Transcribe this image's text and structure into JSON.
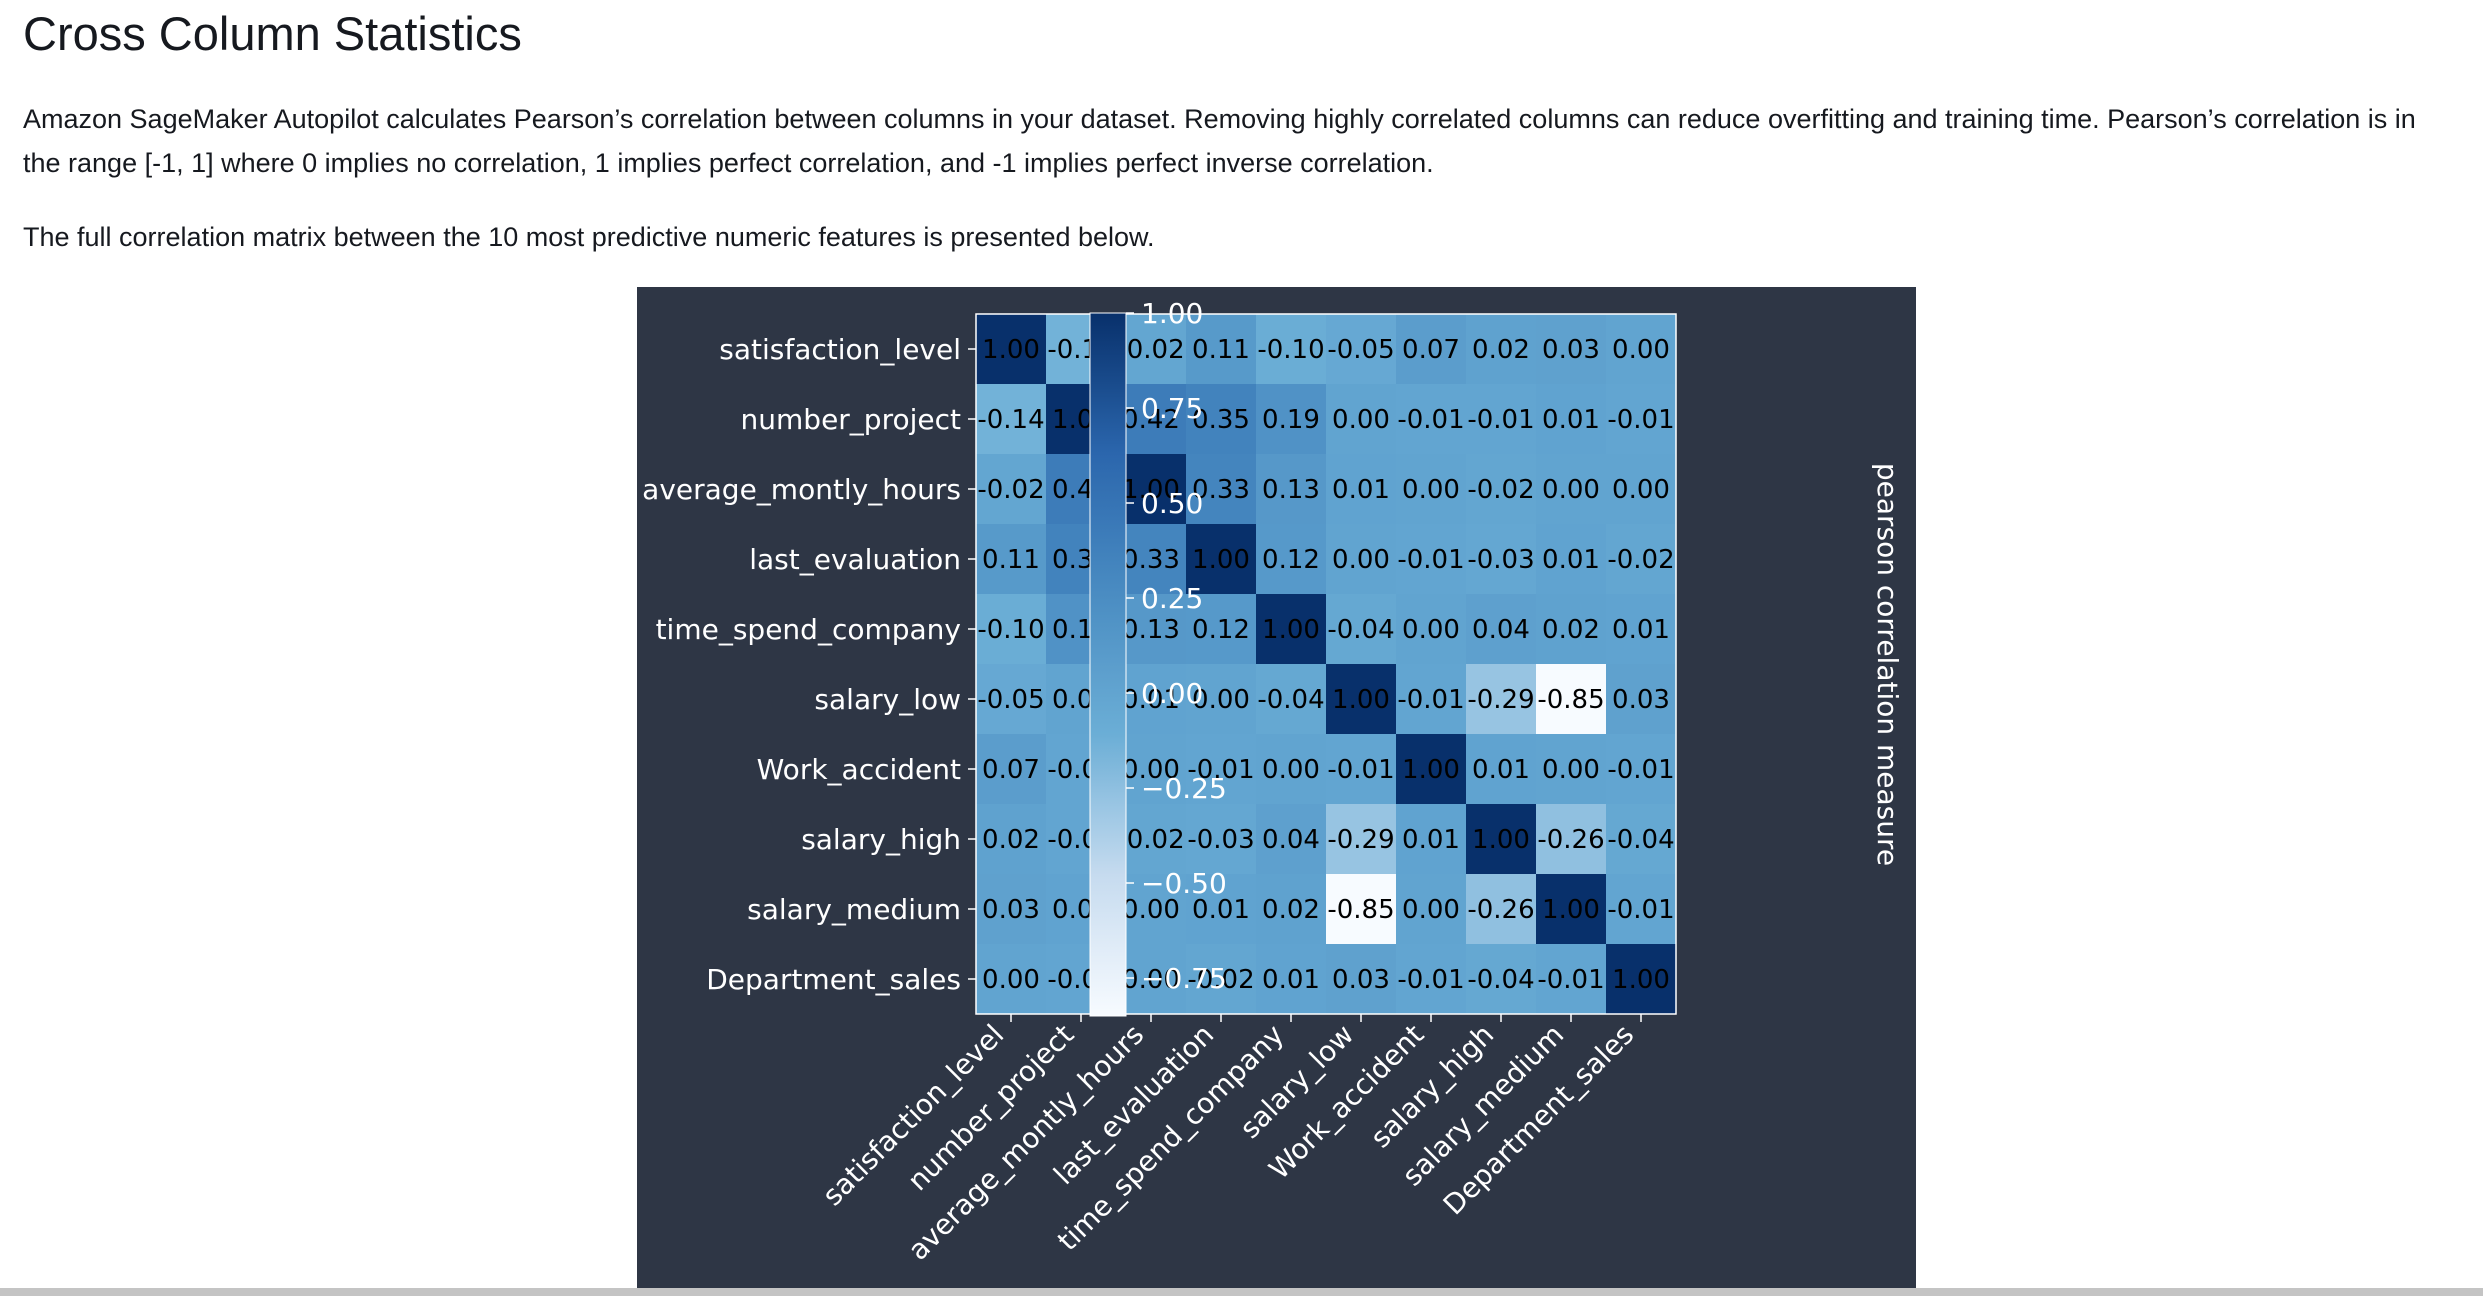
{
  "page": {
    "title": "Cross Column Statistics",
    "intro": "Amazon SageMaker Autopilot calculates Pearson’s correlation between columns in your dataset. Removing highly correlated columns can reduce overfitting and training time. Pearson’s correlation is in the range [-1, 1] where 0 implies no correlation, 1 implies perfect correlation, and -1 implies perfect inverse correlation.",
    "matrix_note": "The full correlation matrix between the 10 most predictive numeric features is presented below."
  },
  "chart_data": {
    "type": "heatmap",
    "title": "",
    "labels": [
      "satisfaction_level",
      "number_project",
      "average_montly_hours",
      "last_evaluation",
      "time_spend_company",
      "salary_low",
      "Work_accident",
      "salary_high",
      "salary_medium",
      "Department_sales"
    ],
    "values": [
      [
        1.0,
        -0.14,
        -0.02,
        0.11,
        -0.1,
        -0.05,
        0.07,
        0.02,
        0.03,
        0.0
      ],
      [
        -0.14,
        1.0,
        0.42,
        0.35,
        0.19,
        -0.0,
        -0.01,
        -0.01,
        0.01,
        -0.01
      ],
      [
        -0.02,
        0.42,
        1.0,
        0.33,
        0.13,
        0.01,
        -0.0,
        -0.02,
        0.0,
        -0.0
      ],
      [
        0.11,
        0.35,
        0.33,
        1.0,
        0.12,
        0.0,
        -0.01,
        -0.03,
        0.01,
        -0.02
      ],
      [
        -0.1,
        0.19,
        0.13,
        0.12,
        1.0,
        -0.04,
        -0.0,
        0.04,
        0.02,
        0.01
      ],
      [
        -0.05,
        -0.0,
        0.01,
        0.0,
        -0.04,
        1.0,
        -0.01,
        -0.29,
        -0.85,
        0.03
      ],
      [
        0.07,
        -0.01,
        -0.0,
        -0.01,
        -0.0,
        -0.01,
        1.0,
        0.01,
        -0.0,
        -0.01
      ],
      [
        0.02,
        -0.01,
        -0.02,
        -0.03,
        0.04,
        -0.29,
        0.01,
        1.0,
        -0.26,
        -0.04
      ],
      [
        0.03,
        0.01,
        0.0,
        0.01,
        0.02,
        -0.85,
        -0.0,
        -0.26,
        1.0,
        -0.01
      ],
      [
        0.0,
        -0.01,
        -0.0,
        -0.02,
        0.01,
        0.03,
        -0.01,
        -0.04,
        -0.01,
        1.0
      ]
    ],
    "value_range": [
      -0.85,
      1.0
    ],
    "colorbar": {
      "label": "pearson correlation measure",
      "ticks": [
        1.0,
        0.75,
        0.5,
        0.25,
        0.0,
        -0.25,
        -0.5,
        -0.75
      ],
      "tick_labels": [
        "1.00",
        "0.75",
        "0.50",
        "0.25",
        "0.00",
        "−0.25",
        "−0.50",
        "−0.75"
      ]
    },
    "colors": {
      "background": "#2e3645",
      "scale": [
        "#f7fbff",
        "#c6dbef",
        "#6baed6",
        "#4a8cc2",
        "#2b66ad",
        "#08306b"
      ],
      "axis_text": "#ffffff",
      "cell_text": "#000000"
    }
  }
}
